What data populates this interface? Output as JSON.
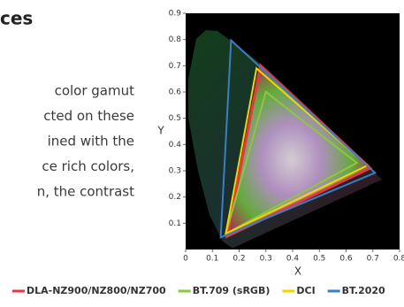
{
  "text": {
    "heading": "ces",
    "lines": [
      "color gamut",
      "cted on these",
      "ined with the",
      "ce rich colors,",
      "n, the contrast"
    ]
  },
  "chart_data": {
    "type": "line",
    "xlabel": "X",
    "ylabel": "Y",
    "xlim": [
      0,
      0.8
    ],
    "ylim": [
      0,
      0.9
    ],
    "xticks": [
      0,
      0.1,
      0.2,
      0.3,
      0.4,
      0.5,
      0.6,
      0.7,
      0.8
    ],
    "yticks": [
      0.1,
      0.2,
      0.3,
      0.4,
      0.5,
      0.6,
      0.7,
      0.8,
      0.9
    ],
    "series": [
      {
        "name": "DLA-NZ900/NZ800/NZ700",
        "color": "#e8383d",
        "x": [
          0.69,
          0.28,
          0.155
        ],
        "values": [
          0.31,
          0.7,
          0.05
        ]
      },
      {
        "name": "BT.709 (sRGB)",
        "color": "#8dc63f",
        "x": [
          0.64,
          0.3,
          0.15
        ],
        "values": [
          0.33,
          0.6,
          0.06
        ]
      },
      {
        "name": "DCI",
        "color": "#f1d600",
        "x": [
          0.68,
          0.265,
          0.15
        ],
        "values": [
          0.32,
          0.69,
          0.06
        ]
      },
      {
        "name": "BT.2020",
        "color": "#3b7dc4",
        "x": [
          0.708,
          0.17,
          0.131
        ],
        "values": [
          0.292,
          0.797,
          0.046
        ]
      }
    ]
  }
}
